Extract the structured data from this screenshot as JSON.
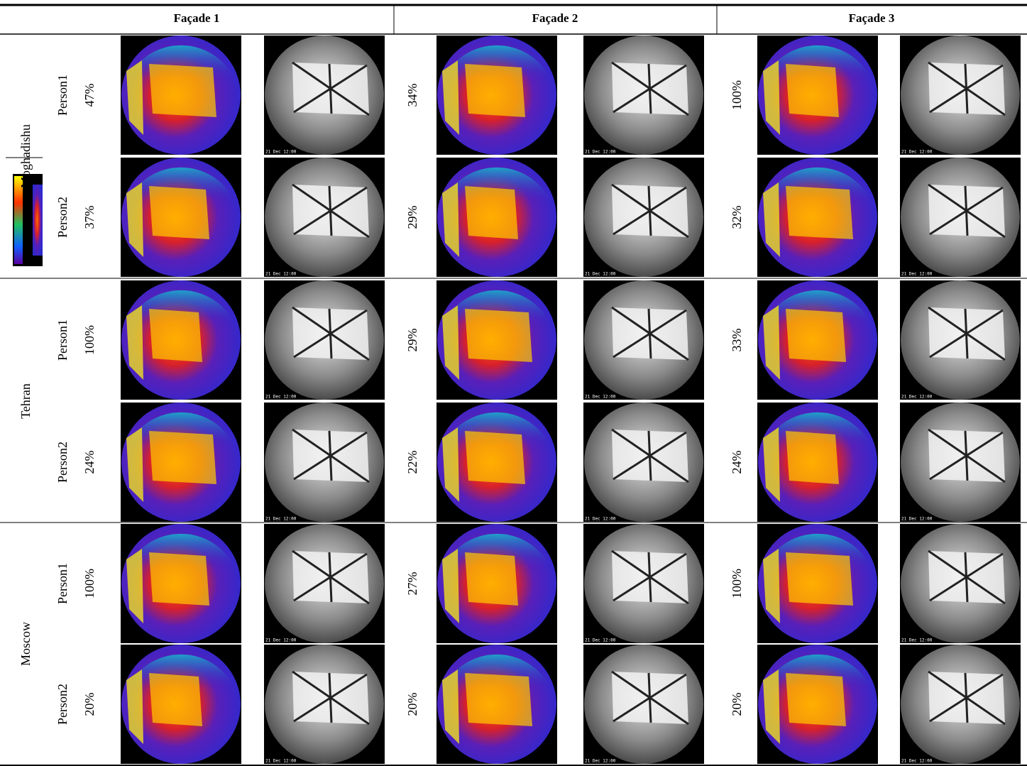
{
  "header": {
    "columns": [
      "Façade 1",
      "Façade 2",
      "Façade 3"
    ]
  },
  "image_caption": "21 Dec 12:00",
  "table": {
    "rows": [
      {
        "city": "Moghadishu",
        "persons": [
          {
            "person": "Person1",
            "values": [
              "47%",
              "34%",
              "100%"
            ]
          },
          {
            "person": "Person2",
            "values": [
              "37%",
              "29%",
              "32%"
            ]
          }
        ]
      },
      {
        "city": "Tehran",
        "persons": [
          {
            "person": "Person1",
            "values": [
              "100%",
              "29%",
              "33%"
            ]
          },
          {
            "person": "Person2",
            "values": [
              "24%",
              "22%",
              "24%"
            ]
          }
        ]
      },
      {
        "city": "Moscow",
        "persons": [
          {
            "person": "Person1",
            "values": [
              "100%",
              "27%",
              "100%"
            ]
          },
          {
            "person": "Person2",
            "values": [
              "20%",
              "20%",
              "20%"
            ]
          }
        ]
      }
    ]
  }
}
